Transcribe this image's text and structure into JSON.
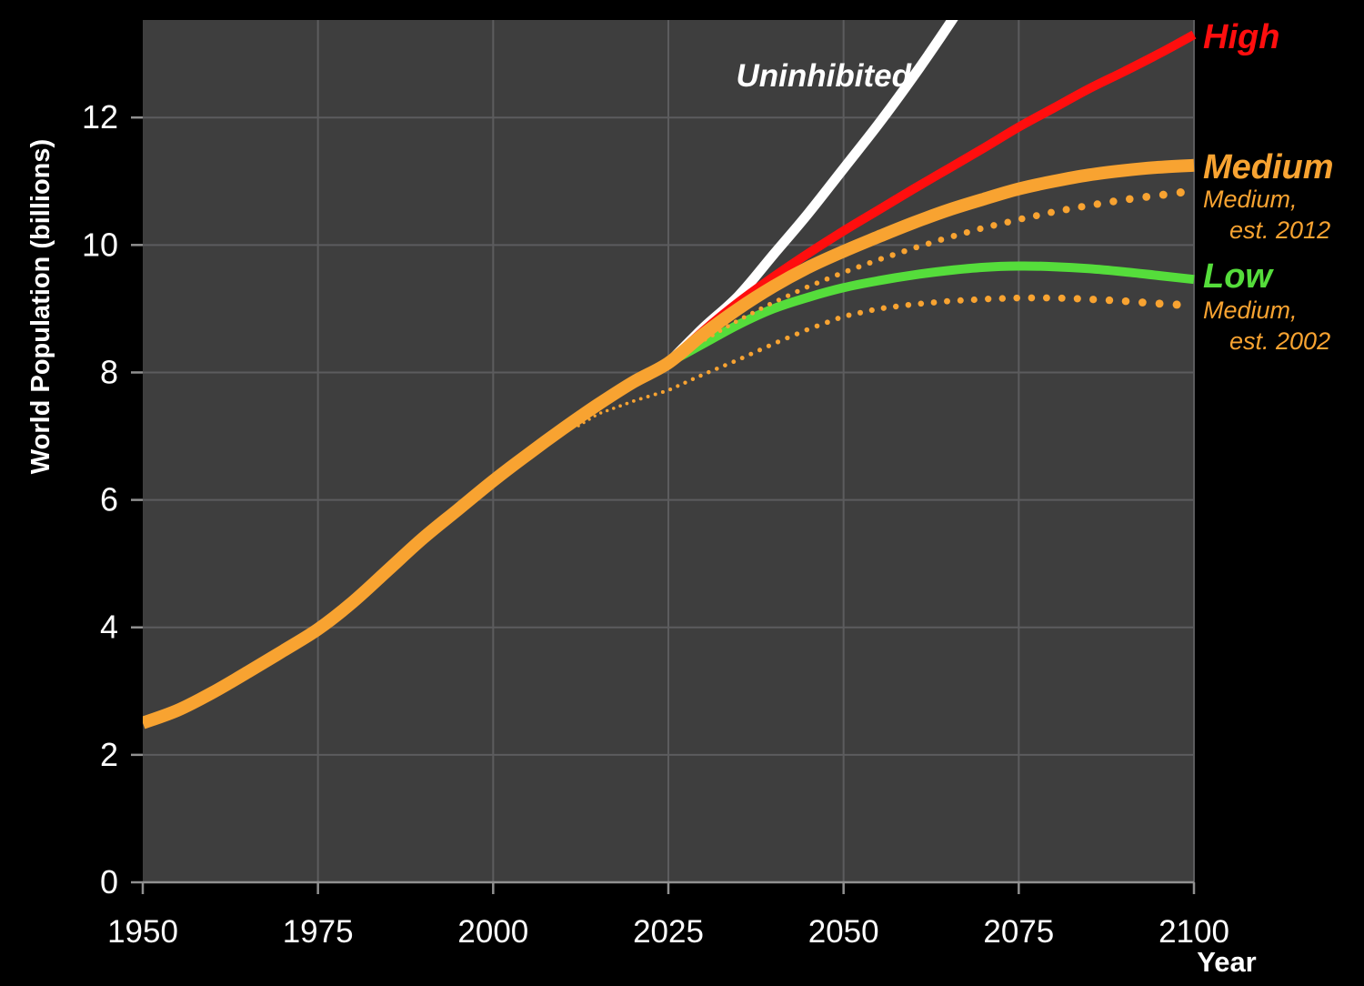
{
  "palette": {
    "background": "#000000",
    "plot_background": "#3E3E3E",
    "gridline": "#5C5C5E",
    "axis": "#909090",
    "text": "#FFFFFF",
    "high": "#FF0E0E",
    "medium_orange": "#F8A331",
    "low_green": "#55DD3B",
    "uninhibited_white": "#FFFFFF"
  },
  "axes": {
    "y_title": "World Population  (billions)",
    "x_title": "Year"
  },
  "labels": {
    "uninhibited": "Uninhibited",
    "high": "High",
    "medium": "Medium",
    "med2012_1": "Medium,",
    "med2012_2": "est. 2012",
    "low": "Low",
    "med2002_1": "Medium,",
    "med2002_2": "est. 2002"
  },
  "chart_data": {
    "type": "line",
    "title": "",
    "xlabel": "Year",
    "ylabel": "World Population (billions)",
    "xlim": [
      1950,
      2100
    ],
    "ylim": [
      0,
      13.53
    ],
    "x_ticks": [
      1950,
      1975,
      2000,
      2025,
      2050,
      2075,
      2100
    ],
    "y_ticks": [
      0,
      2,
      4,
      6,
      8,
      10,
      12
    ],
    "grid": true,
    "legend_position": "right-annotations",
    "series": [
      {
        "name": "Uninhibited",
        "color": "#FFFFFF",
        "style": "solid",
        "width": 11,
        "x": [
          2025,
          2030,
          2035,
          2040,
          2045,
          2050,
          2055,
          2060,
          2065,
          2070
        ],
        "y": [
          8.15,
          8.7,
          9.2,
          9.85,
          10.5,
          11.2,
          11.9,
          12.65,
          13.45,
          14.3
        ]
      },
      {
        "name": "High",
        "color": "#FF0E0E",
        "style": "solid",
        "width": 10,
        "x": [
          2025,
          2030,
          2035,
          2040,
          2045,
          2050,
          2055,
          2060,
          2065,
          2070,
          2075,
          2080,
          2085,
          2090,
          2095,
          2100
        ],
        "y": [
          8.15,
          8.65,
          9.1,
          9.5,
          9.87,
          10.22,
          10.55,
          10.88,
          11.2,
          11.52,
          11.85,
          12.15,
          12.45,
          12.72,
          13.0,
          13.3
        ]
      },
      {
        "name": "Low",
        "color": "#55DD3B",
        "style": "solid",
        "width": 10,
        "x": [
          2025,
          2030,
          2035,
          2040,
          2045,
          2050,
          2055,
          2060,
          2065,
          2070,
          2075,
          2080,
          2085,
          2090,
          2095,
          2100
        ],
        "y": [
          8.15,
          8.45,
          8.75,
          9.0,
          9.18,
          9.33,
          9.44,
          9.53,
          9.6,
          9.65,
          9.67,
          9.66,
          9.63,
          9.58,
          9.52,
          9.46
        ]
      },
      {
        "name": "Medium, est. 2012",
        "color": "#F8A331",
        "style": "dotted",
        "dot_radius": [
          2.2,
          4.6
        ],
        "x": [
          2030,
          2035,
          2040,
          2045,
          2050,
          2055,
          2060,
          2065,
          2070,
          2075,
          2080,
          2085,
          2090,
          2095,
          2100
        ],
        "y": [
          8.5,
          8.82,
          9.1,
          9.35,
          9.57,
          9.77,
          9.95,
          10.12,
          10.27,
          10.4,
          10.52,
          10.62,
          10.71,
          10.78,
          10.85
        ]
      },
      {
        "name": "Medium, est. 2002",
        "color": "#F8A331",
        "style": "dotted",
        "dot_radius": [
          1.6,
          4.6
        ],
        "x": [
          2012,
          2015,
          2020,
          2025,
          2030,
          2035,
          2040,
          2045,
          2050,
          2055,
          2060,
          2065,
          2070,
          2075,
          2080,
          2085,
          2090,
          2095,
          2100
        ],
        "y": [
          7.15,
          7.35,
          7.55,
          7.72,
          7.97,
          8.2,
          8.45,
          8.68,
          8.88,
          9.0,
          9.07,
          9.12,
          9.15,
          9.17,
          9.17,
          9.15,
          9.12,
          9.08,
          9.05
        ]
      },
      {
        "name": "Medium",
        "color": "#F8A331",
        "style": "solid",
        "width": 14,
        "x": [
          1950,
          1955,
          1960,
          1965,
          1970,
          1975,
          1980,
          1985,
          1990,
          1995,
          2000,
          2005,
          2010,
          2015,
          2020,
          2025,
          2030,
          2035,
          2040,
          2045,
          2050,
          2055,
          2060,
          2065,
          2070,
          2075,
          2080,
          2085,
          2090,
          2095,
          2100
        ],
        "y": [
          2.5,
          2.7,
          2.98,
          3.3,
          3.63,
          3.97,
          4.4,
          4.9,
          5.4,
          5.85,
          6.3,
          6.72,
          7.12,
          7.5,
          7.85,
          8.15,
          8.6,
          9.0,
          9.35,
          9.65,
          9.9,
          10.13,
          10.35,
          10.55,
          10.72,
          10.88,
          11.0,
          11.1,
          11.17,
          11.22,
          11.25
        ]
      }
    ]
  }
}
